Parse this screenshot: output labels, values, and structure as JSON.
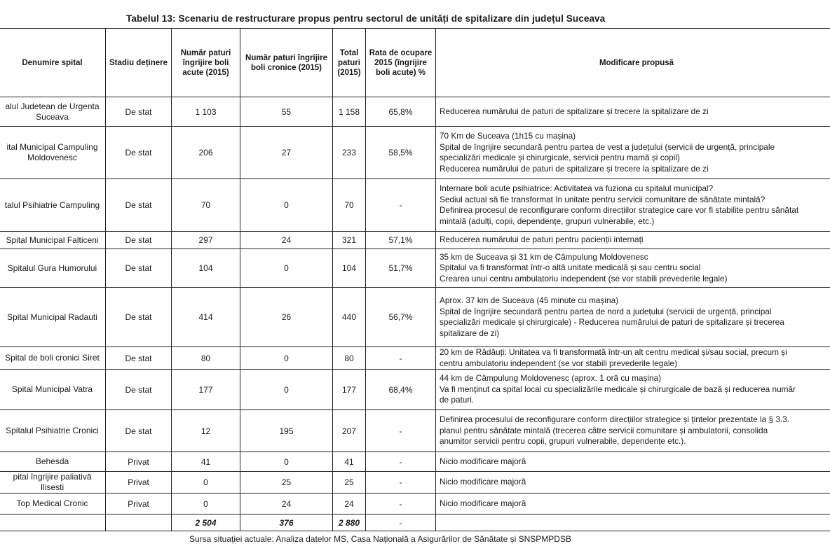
{
  "title": "Tabelul 13: Scenariu de restructurare propus pentru sectorul de unități de spitalizare din județul  Suceava",
  "headers": [
    "Denumire spital",
    "Stadiu deținere",
    "Număr paturi îngrijire boli acute (2015)",
    "Număr paturi îngrijire boli cronice (2015)",
    "Total paturi (2015)",
    "Rata de ocupare 2015 (îngrijire boli acute) %",
    "Modificare propusă"
  ],
  "rows": [
    {
      "name": "alul Judetean de Urgenta Suceava",
      "stadiu": "De stat",
      "acute": "1 103",
      "cronice": "55",
      "total": "1 158",
      "rata": "65,8%",
      "mod": [
        "Reducerea numărului de paturi de spitalizare și trecere la spitalizare de zi"
      ]
    },
    {
      "name": "ital Municipal Campuling Moldovenesc",
      "stadiu": "De stat",
      "acute": "206",
      "cronice": "27",
      "total": "233",
      "rata": "58,5%",
      "mod": [
        "70 Km de Suceava (1h15 cu mașina)",
        "Spital de îngrijire secundară pentru partea de vest a județului (servicii de urgență, principale",
        "specializări medicale și chirurgicale, servicii pentru mamă și copil)",
        "Reducerea numărului de paturi de spitalizare și trecere la spitalizare de zi"
      ]
    },
    {
      "name": "talul Psihiatrie Campuling",
      "stadiu": "De stat",
      "acute": "70",
      "cronice": "0",
      "total": "70",
      "rata": "-",
      "mod": [
        "Internare boli acute psihiatrice: Activitatea va fuziona cu spitalul municipal?",
        "Sediul actual să fie transformat în unitate pentru servicii comunitare de sănătate mintală?",
        "Definirea procesul de reconfigurare conform direcțiilor strategice care vor fi stabilite pentru sănătat",
        "mintală (adulți, copii, dependențe, grupuri vulnerabile, etc.)"
      ]
    },
    {
      "name": "Spital Municipal Falticeni",
      "stadiu": "De stat",
      "acute": "297",
      "cronice": "24",
      "total": "321",
      "rata": "57,1%",
      "mod": [
        "Reducerea numărului de paturi pentru pacienții internați"
      ]
    },
    {
      "name": "Spitalul Gura Humorului",
      "stadiu": "De stat",
      "acute": "104",
      "cronice": "0",
      "total": "104",
      "rata": "51,7%",
      "mod": [
        "35 km de Suceava și 31 km de Câmpulung Moldovenesc",
        "Spitalul va fi transformat într-o altă unitate medicală și sau centru social",
        "Crearea unui centru ambulatoriu independent (se vor stabili prevederile legale)"
      ]
    },
    {
      "name": "Spital Municipal Radauti",
      "stadiu": "De stat",
      "acute": "414",
      "cronice": "26",
      "total": "440",
      "rata": "56,7%",
      "mod": [
        "Aprox. 37 km de Suceava (45 minute cu mașina)",
        "Spital de îngrijire secundară pentru partea de nord a județului (servicii de urgență, principal",
        "specializări medicale și chirurgicale) - Reducerea numărului de paturi de spitalizare și trecerea",
        "spitalizare de zi)"
      ]
    },
    {
      "name": "Spital de boli cronici Siret",
      "stadiu": "De stat",
      "acute": "80",
      "cronice": "0",
      "total": "80",
      "rata": "-",
      "mod": [
        "20 km de Rădăuți: Unitatea va fi transformată într-un alt centru medical și/sau social, precum și",
        "centru ambulatoriu independent (se vor stabili prevederile legale)"
      ]
    },
    {
      "name": "Spital Municipal Vatra",
      "stadiu": "De stat",
      "acute": "177",
      "cronice": "0",
      "total": "177",
      "rata": "68,4%",
      "mod": [
        "44 km de Câmpulung Moldovenesc (aprox. 1 oră cu mașina)",
        "Va fi menținut ca spital local cu specializările medicale și chirurgicale de bază și reducerea număr",
        "de paturi."
      ]
    },
    {
      "name": "Spitalul Psihiatrie Cronici",
      "stadiu": "De stat",
      "acute": "12",
      "cronice": "195",
      "total": "207",
      "rata": "-",
      "mod": [
        "Definirea procesului de reconfigurare conform direcțiilor strategice și țintelor prezentate  la § 3.3.",
        "planul pentru sănătate mintală (trecerea către servicii comunitare și ambulatorii, consolida",
        "anumitor servicii pentru copii, grupuri vulnerabile, dependențe etc.)."
      ]
    },
    {
      "name": "Behesda",
      "stadiu": "Privat",
      "acute": "41",
      "cronice": "0",
      "total": "41",
      "rata": "-",
      "mod": [
        "Nicio modificare majoră"
      ]
    },
    {
      "name": "pital îngrijire paliativă Ilisesti",
      "stadiu": "Privat",
      "acute": "0",
      "cronice": "25",
      "total": "25",
      "rata": "-",
      "mod": [
        "Nicio modificare majoră"
      ]
    },
    {
      "name": "Top Medical Cronic",
      "stadiu": "Privat",
      "acute": "0",
      "cronice": "24",
      "total": "24",
      "rata": "-",
      "mod": [
        "Nicio modificare majoră"
      ]
    }
  ],
  "totals": {
    "acute": "2 504",
    "cronice": "376",
    "total": "2 880",
    "rata": "-"
  },
  "source": "Sursa situației actuale: Analiza datelor MS, Casa Națională a Asigurărilor de Sănătate și SNSPMPDSB"
}
